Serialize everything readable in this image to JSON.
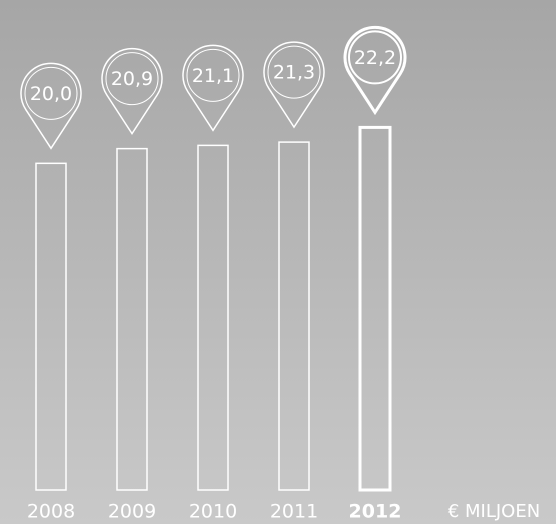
{
  "chart_data": {
    "type": "bar",
    "categories": [
      "2008",
      "2009",
      "2010",
      "2011",
      "2012"
    ],
    "values": [
      20.0,
      20.9,
      21.1,
      21.3,
      22.2
    ],
    "value_labels": [
      "20,0",
      "20,9",
      "21,1",
      "21,3",
      "22,2"
    ],
    "unit_label": "€ MILJOEN",
    "color": "#ffffff",
    "highlight_index": 4,
    "ylim": [
      0,
      30
    ]
  }
}
